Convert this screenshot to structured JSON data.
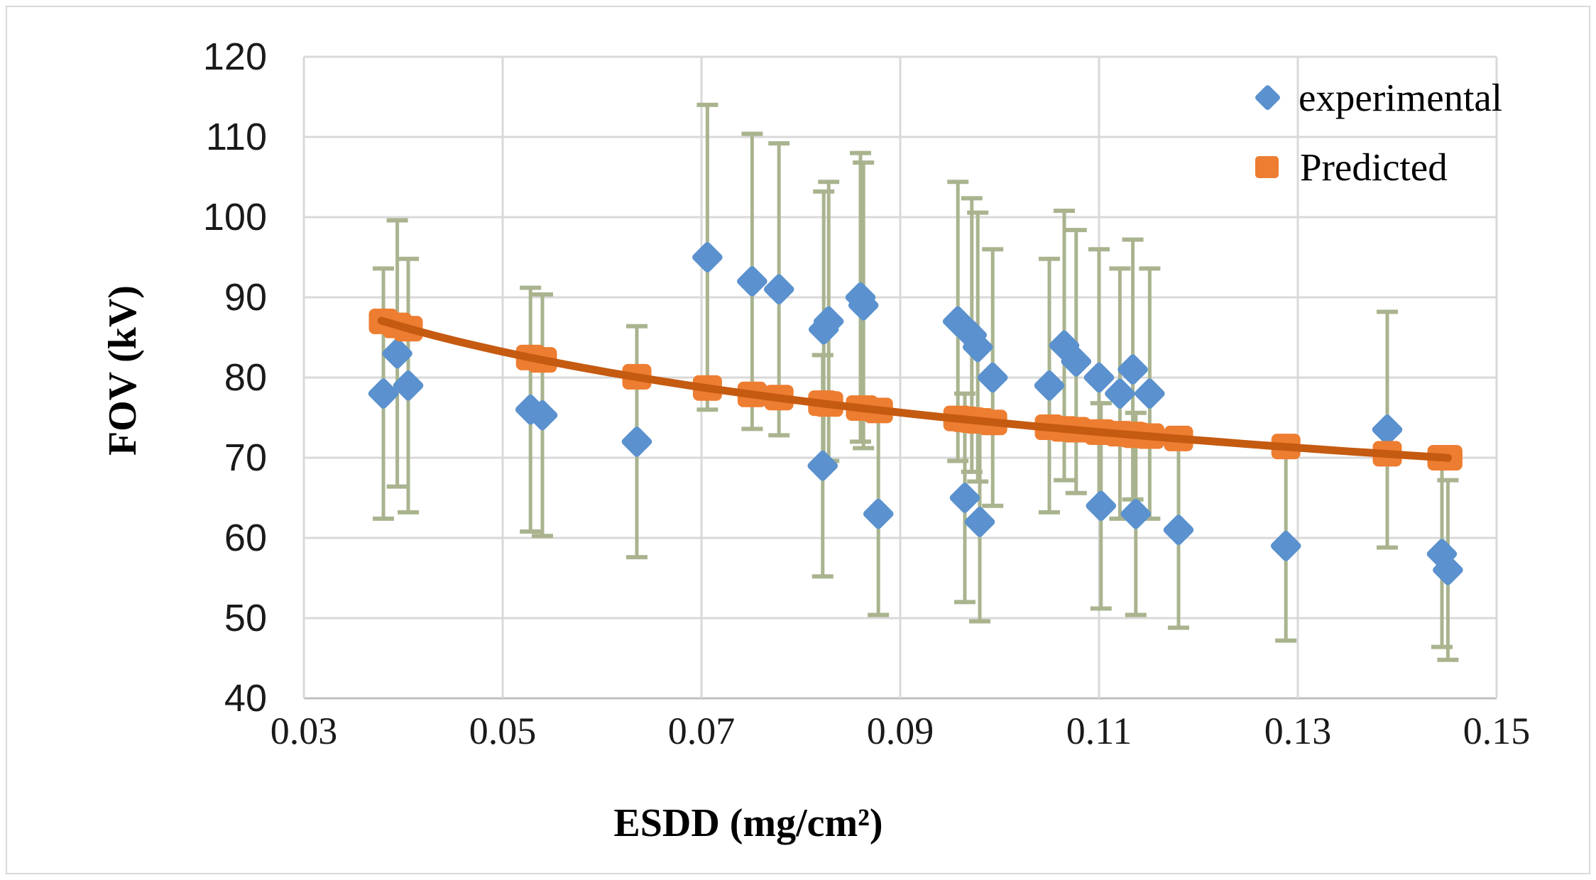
{
  "figure": {
    "y_axis_title": "FOV (kV)",
    "x_axis_title": "ESDD (mg/cm²)",
    "legend": {
      "position": "top-right",
      "items": [
        {
          "label": "experimental",
          "marker": "diamond",
          "color": "#5A91CE"
        },
        {
          "label": "Predicted",
          "marker": "square",
          "color": "#ED7D31"
        }
      ]
    }
  },
  "chart_data": {
    "type": "scatter",
    "title": "",
    "xlabel": "ESDD (mg/cm²)",
    "ylabel": "FOV (kV)",
    "xlim": [
      0.03,
      0.15
    ],
    "ylim": [
      40,
      120
    ],
    "x_ticks": [
      0.03,
      0.05,
      0.07,
      0.09,
      0.11,
      0.13,
      0.15
    ],
    "x_tick_labels": [
      "0.03",
      "0.05",
      "0.07",
      "0.09",
      "0.11",
      "0.13",
      "0.15"
    ],
    "y_ticks": [
      40,
      50,
      60,
      70,
      80,
      90,
      100,
      110,
      120
    ],
    "y_tick_labels": [
      "40",
      "50",
      "60",
      "70",
      "80",
      "90",
      "100",
      "110",
      "120"
    ],
    "grid": true,
    "legend_position": "top-right",
    "error_bar_note": "vertical error bars of ±20% on each experimental point, with end caps",
    "series": [
      {
        "name": "experimental",
        "marker": "diamond",
        "color": "#5A91CE",
        "err_pct": 20,
        "points": [
          [
            0.038,
            78
          ],
          [
            0.0394,
            83
          ],
          [
            0.0405,
            79
          ],
          [
            0.0528,
            76
          ],
          [
            0.054,
            75.3
          ],
          [
            0.0635,
            72
          ],
          [
            0.0706,
            95
          ],
          [
            0.0751,
            92
          ],
          [
            0.0778,
            91
          ],
          [
            0.0822,
            69
          ],
          [
            0.0823,
            86
          ],
          [
            0.0828,
            87
          ],
          [
            0.086,
            90
          ],
          [
            0.0863,
            89
          ],
          [
            0.0878,
            63
          ],
          [
            0.0958,
            87
          ],
          [
            0.0965,
            65
          ],
          [
            0.0972,
            85.3
          ],
          [
            0.0978,
            83.8
          ],
          [
            0.098,
            62
          ],
          [
            0.0993,
            80
          ],
          [
            0.105,
            79
          ],
          [
            0.1065,
            84
          ],
          [
            0.1077,
            82
          ],
          [
            0.11,
            80
          ],
          [
            0.1102,
            64
          ],
          [
            0.1121,
            78
          ],
          [
            0.1134,
            81
          ],
          [
            0.1137,
            63
          ],
          [
            0.1151,
            78
          ],
          [
            0.118,
            61
          ],
          [
            0.1288,
            59
          ],
          [
            0.139,
            73.5
          ],
          [
            0.1445,
            58
          ],
          [
            0.1451,
            56
          ]
        ]
      },
      {
        "name": "Predicted",
        "marker": "square",
        "color": "#ED7D31",
        "points": [
          [
            0.038,
            87.0
          ],
          [
            0.0394,
            86.5
          ],
          [
            0.0405,
            86.1
          ],
          [
            0.0528,
            82.5
          ],
          [
            0.054,
            82.2
          ],
          [
            0.0635,
            80.1
          ],
          [
            0.0706,
            78.7
          ],
          [
            0.0751,
            77.9
          ],
          [
            0.0778,
            77.5
          ],
          [
            0.0822,
            76.8
          ],
          [
            0.0823,
            76.8
          ],
          [
            0.0828,
            76.7
          ],
          [
            0.086,
            76.2
          ],
          [
            0.0863,
            76.2
          ],
          [
            0.0878,
            75.9
          ],
          [
            0.0958,
            74.9
          ],
          [
            0.0965,
            74.8
          ],
          [
            0.0972,
            74.7
          ],
          [
            0.0978,
            74.6
          ],
          [
            0.098,
            74.6
          ],
          [
            0.0993,
            74.4
          ],
          [
            0.105,
            73.8
          ],
          [
            0.1065,
            73.6
          ],
          [
            0.1077,
            73.5
          ],
          [
            0.11,
            73.2
          ],
          [
            0.1102,
            73.2
          ],
          [
            0.1121,
            73.0
          ],
          [
            0.1134,
            72.9
          ],
          [
            0.1137,
            72.8
          ],
          [
            0.1151,
            72.7
          ],
          [
            0.118,
            72.4
          ],
          [
            0.1288,
            71.4
          ],
          [
            0.139,
            70.5
          ],
          [
            0.1445,
            70.0
          ],
          [
            0.1451,
            70.0
          ]
        ]
      }
    ],
    "trend": {
      "applies_to": "Predicted",
      "fit": "power",
      "a": 51.13,
      "b": -0.1626,
      "x_range": [
        0.0378,
        0.1451
      ],
      "color": "#C55A11"
    },
    "style_colors": {
      "gridline": "#D9D9D9",
      "axis_line": "#BFBFBF",
      "error_bar": "#A9B48F",
      "text": "#1a1a1a",
      "figure_border": "#D9D9D9"
    }
  }
}
